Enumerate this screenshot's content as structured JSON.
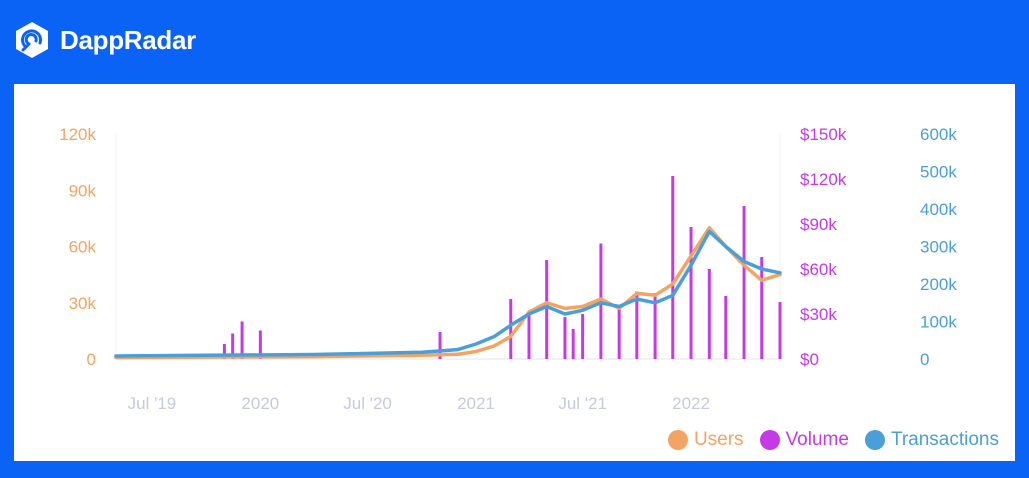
{
  "brand": {
    "name": "DappRadar",
    "logo_icon": "dappradar-logo-icon"
  },
  "colors": {
    "background": "#0a63f5",
    "users": "#f4a462",
    "volume": "#c53ae6",
    "transactions": "#4a9fd8",
    "x_ticks": "#c7c9df"
  },
  "chart_data": {
    "type": "line",
    "legend_position": "bottom-right",
    "grid": false,
    "x_range": [
      "2019-05",
      "2022-06"
    ],
    "x_ticks": [
      {
        "date": "2019-07",
        "label": "Jul '19"
      },
      {
        "date": "2020-01",
        "label": "2020"
      },
      {
        "date": "2020-07",
        "label": "Jul '20"
      },
      {
        "date": "2021-01",
        "label": "2021"
      },
      {
        "date": "2021-07",
        "label": "Jul '21"
      },
      {
        "date": "2022-01",
        "label": "2022"
      }
    ],
    "axes": {
      "users": {
        "side": "left",
        "range": [
          0,
          120000
        ],
        "ticks": [
          "0",
          "30k",
          "60k",
          "90k",
          "120k"
        ]
      },
      "volume": {
        "side": "right",
        "range": [
          0,
          150000
        ],
        "ticks": [
          "$0",
          "$30k",
          "$60k",
          "$90k",
          "$120k",
          "$150k"
        ]
      },
      "transactions": {
        "side": "right",
        "range": [
          0,
          600000
        ],
        "ticks": [
          "0",
          "100k",
          "200k",
          "300k",
          "400k",
          "500k",
          "600k"
        ]
      }
    },
    "series": [
      {
        "name": "Users",
        "axis": "users",
        "kind": "line",
        "points": [
          [
            "2019-05",
            800
          ],
          [
            "2019-10",
            1000
          ],
          [
            "2020-04",
            1300
          ],
          [
            "2020-10",
            2000
          ],
          [
            "2020-12",
            2500
          ],
          [
            "2021-01",
            4000
          ],
          [
            "2021-02",
            7000
          ],
          [
            "2021-03",
            12000
          ],
          [
            "2021-04",
            25000
          ],
          [
            "2021-05",
            30000
          ],
          [
            "2021-06",
            27000
          ],
          [
            "2021-07",
            28000
          ],
          [
            "2021-08",
            32000
          ],
          [
            "2021-09",
            27000
          ],
          [
            "2021-10",
            35000
          ],
          [
            "2021-11",
            34000
          ],
          [
            "2021-12",
            40000
          ],
          [
            "2022-01",
            55000
          ],
          [
            "2022-02",
            70000
          ],
          [
            "2022-03",
            60000
          ],
          [
            "2022-04",
            50000
          ],
          [
            "2022-05",
            42000
          ],
          [
            "2022-06",
            45000
          ]
        ]
      },
      {
        "name": "Volume",
        "axis": "volume",
        "kind": "spikes",
        "points": [
          [
            "2019-05",
            3000
          ],
          [
            "2019-11",
            10000
          ],
          [
            "2019-11-15",
            17000
          ],
          [
            "2019-12",
            25000
          ],
          [
            "2020-01",
            19000
          ],
          [
            "2020-11",
            18000
          ],
          [
            "2021-03",
            40000
          ],
          [
            "2021-04",
            30000
          ],
          [
            "2021-05",
            66000
          ],
          [
            "2021-06",
            28000
          ],
          [
            "2021-06-15",
            20000
          ],
          [
            "2021-07",
            30000
          ],
          [
            "2021-08",
            77000
          ],
          [
            "2021-09",
            34000
          ],
          [
            "2021-10",
            45000
          ],
          [
            "2021-11",
            44000
          ],
          [
            "2021-12",
            122000
          ],
          [
            "2022-01",
            88000
          ],
          [
            "2022-02",
            60000
          ],
          [
            "2022-03",
            42000
          ],
          [
            "2022-04",
            102000
          ],
          [
            "2022-05",
            68000
          ],
          [
            "2022-06",
            38000
          ]
        ]
      },
      {
        "name": "Transactions",
        "axis": "transactions",
        "kind": "line",
        "points": [
          [
            "2019-05",
            8000
          ],
          [
            "2019-10",
            10000
          ],
          [
            "2020-04",
            12000
          ],
          [
            "2020-10",
            18000
          ],
          [
            "2020-12",
            25000
          ],
          [
            "2021-01",
            40000
          ],
          [
            "2021-02",
            60000
          ],
          [
            "2021-03",
            90000
          ],
          [
            "2021-04",
            120000
          ],
          [
            "2021-05",
            140000
          ],
          [
            "2021-06",
            120000
          ],
          [
            "2021-07",
            130000
          ],
          [
            "2021-08",
            150000
          ],
          [
            "2021-09",
            140000
          ],
          [
            "2021-10",
            160000
          ],
          [
            "2021-11",
            150000
          ],
          [
            "2021-12",
            170000
          ],
          [
            "2022-01",
            250000
          ],
          [
            "2022-02",
            340000
          ],
          [
            "2022-03",
            300000
          ],
          [
            "2022-04",
            260000
          ],
          [
            "2022-05",
            240000
          ],
          [
            "2022-06",
            230000
          ]
        ]
      }
    ]
  }
}
